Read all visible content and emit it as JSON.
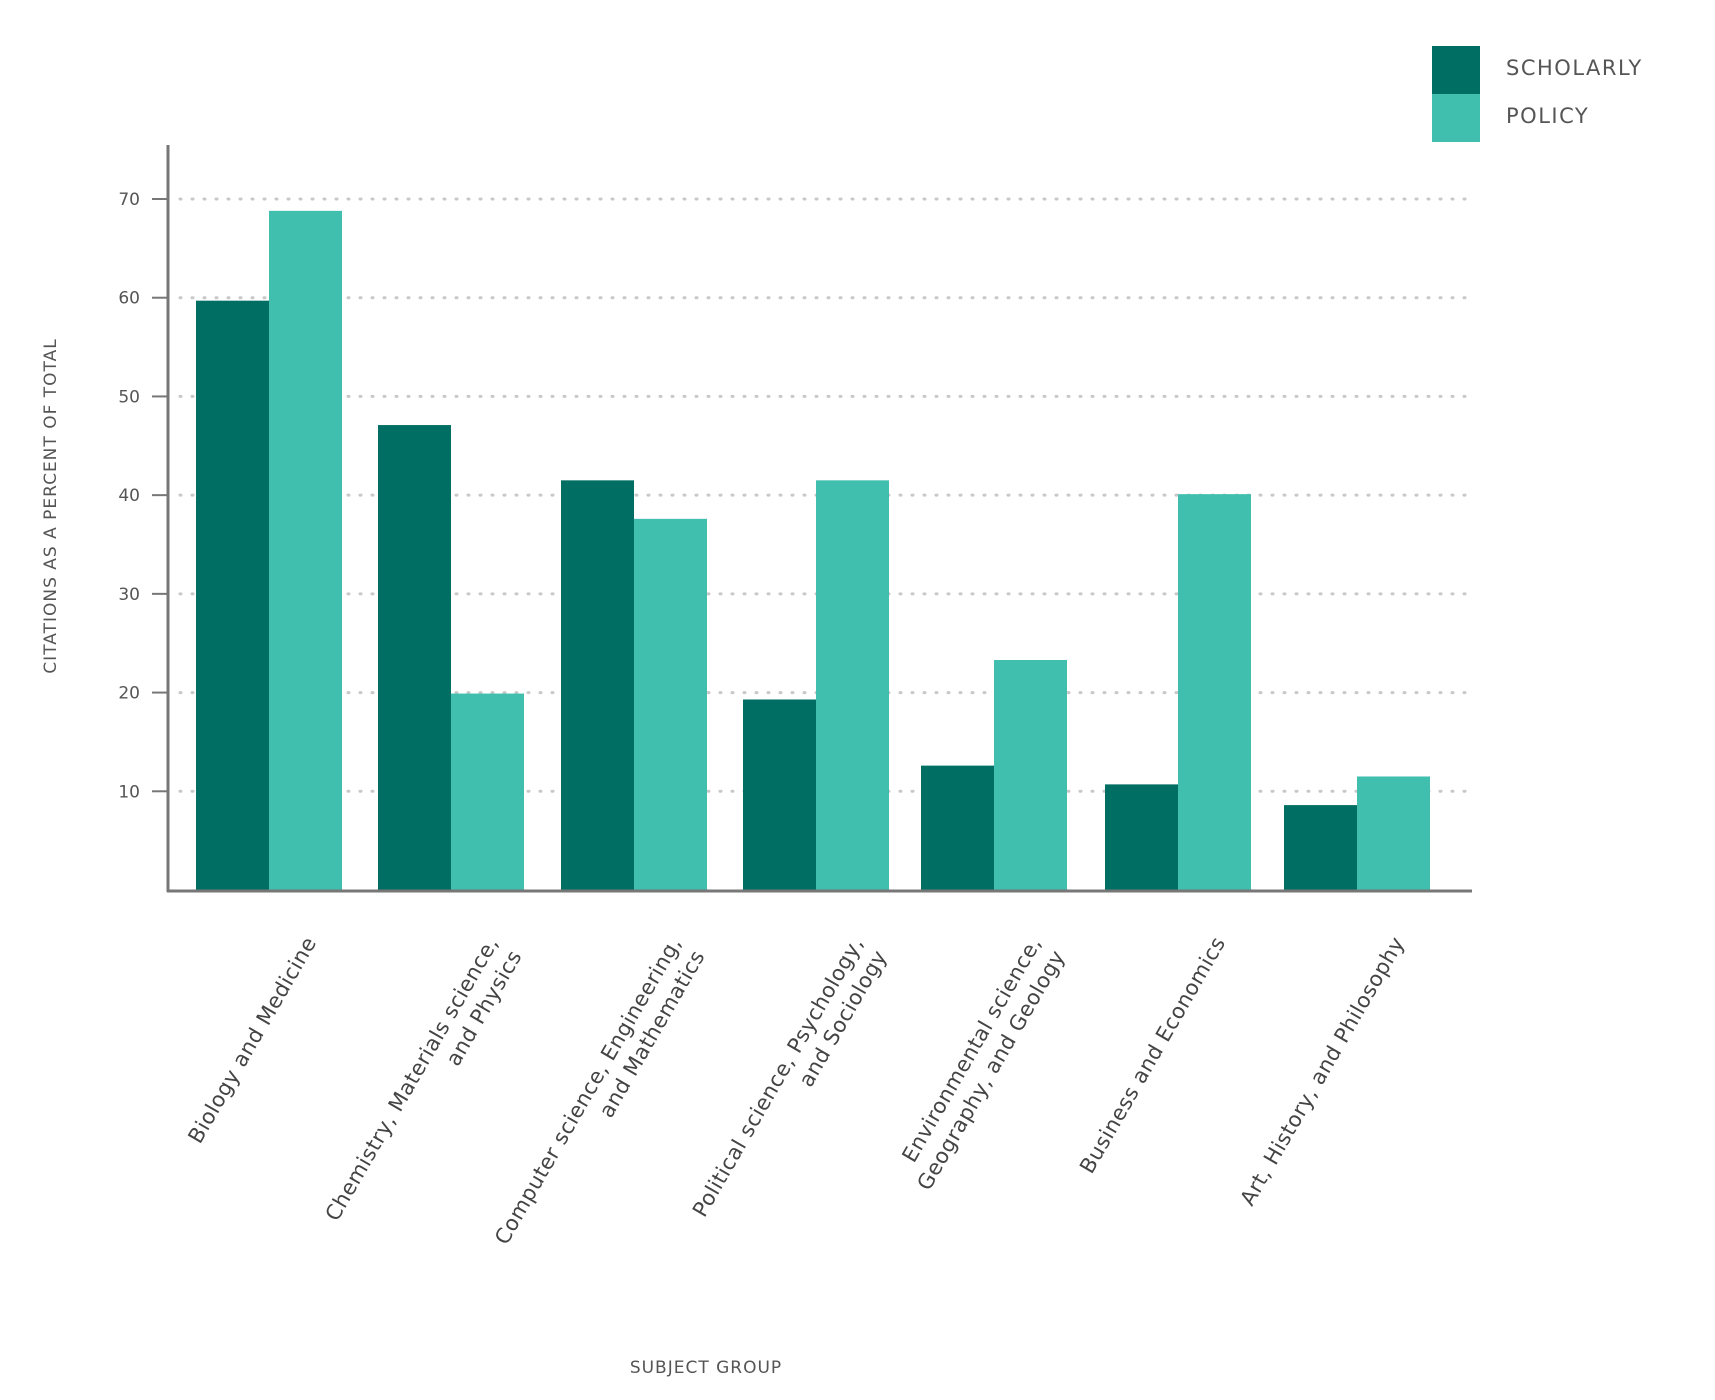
{
  "chart_data": {
    "type": "bar",
    "title": "",
    "xlabel": "SUBJECT GROUP",
    "ylabel": "CITATIONS AS A PERCENT OF TOTAL",
    "ylim": [
      0,
      75
    ],
    "yticks": [
      10,
      20,
      30,
      40,
      50,
      60,
      70
    ],
    "grid": "horizontal dotted",
    "legend_position": "top-right",
    "categories": [
      [
        "Biology and Medicine"
      ],
      [
        "Chemistry, Materials science,",
        "and Physics"
      ],
      [
        "Computer science, Engineering,",
        "and Mathematics"
      ],
      [
        "Political science, Psychology,",
        "and Sociology"
      ],
      [
        "Environmental science,",
        "Geography, and Geology"
      ],
      [
        "Business and Economics"
      ],
      [
        "Art, History, and Philosophy"
      ]
    ],
    "series": [
      {
        "name": "SCHOLARLY",
        "color": "#006e62",
        "values": [
          59.7,
          47.1,
          41.5,
          19.3,
          12.6,
          10.7,
          8.6
        ]
      },
      {
        "name": "POLICY",
        "color": "#40bfaf",
        "values": [
          68.8,
          19.9,
          37.6,
          41.5,
          23.3,
          40.1,
          11.5
        ]
      }
    ]
  }
}
